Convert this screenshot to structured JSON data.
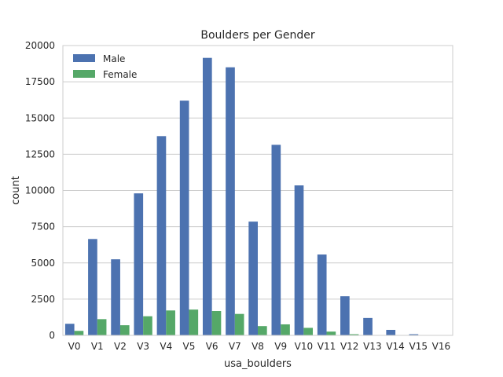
{
  "chart_data": {
    "type": "bar",
    "title": "Boulders per Gender",
    "xlabel": "usa_boulders",
    "ylabel": "count",
    "ylim": [
      0,
      20000
    ],
    "yticks": [
      0,
      2500,
      5000,
      7500,
      10000,
      12500,
      15000,
      17500,
      20000
    ],
    "grid": "horizontal",
    "legend_position": "top-left",
    "categories": [
      "V0",
      "V1",
      "V2",
      "V3",
      "V4",
      "V5",
      "V6",
      "V7",
      "V8",
      "V9",
      "V10",
      "V11",
      "V12",
      "V13",
      "V14",
      "V15",
      "V16"
    ],
    "series": [
      {
        "name": "Male",
        "color": "#4c72b0",
        "values": [
          800,
          6650,
          5250,
          9800,
          13750,
          16200,
          19150,
          18500,
          7850,
          13150,
          10350,
          5580,
          2700,
          1200,
          380,
          80,
          10
        ]
      },
      {
        "name": "Female",
        "color": "#55a868",
        "values": [
          310,
          1120,
          700,
          1320,
          1720,
          1780,
          1680,
          1480,
          640,
          760,
          520,
          260,
          80,
          20,
          5,
          2,
          0
        ]
      }
    ]
  }
}
